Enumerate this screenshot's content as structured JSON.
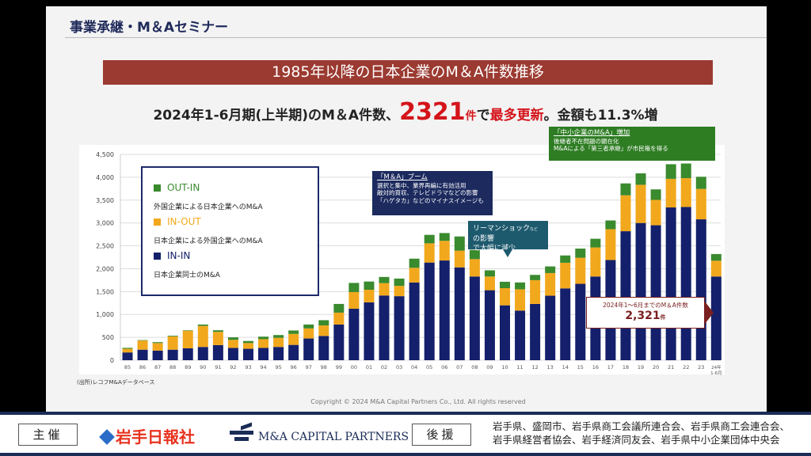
{
  "header": {
    "title": "事業承継・M＆Aセミナー"
  },
  "slide": {
    "title": "1985年以降の日本企業のM＆A件数推移",
    "subtitle_pre": "2024年1-6月期(上半期)のM＆A件数、",
    "subtitle_num": "2321",
    "subtitle_unit": "件",
    "subtitle_mid": "で",
    "subtitle_red": "最多更新",
    "subtitle_post": "。金額も11.3%増",
    "source": "(出所)レコフM&Aデータベース",
    "copyright": "Copyright © 2024 M&A Capital Partners Co., Ltd. All rights reserved"
  },
  "legend": [
    {
      "label": "OUT-IN",
      "desc": "外国企業による日本企業へのM&A",
      "color": "#3a8a2e"
    },
    {
      "label": "IN-OUT",
      "desc": "日本企業による外国企業へのM&A",
      "color": "#f2a81d"
    },
    {
      "label": "IN-IN",
      "desc": "日本企業同士のM&A",
      "color": "#14206b"
    }
  ],
  "annotations": {
    "boom": {
      "title": "「M＆A」ブーム",
      "lines": [
        "選択と集中、業界再編に有効活用",
        "敵対的買収、テレビドラマなどの影響",
        "「ハゲタカ」などのマイナスイメージも"
      ]
    },
    "lehman": {
      "line1": "リーマンショック",
      "small": "など",
      "line1b": "の影響",
      "line2": "で大幅に減少"
    },
    "sme": {
      "title": "「中小企業のM&A」増加",
      "lines": [
        "後継者不在問題の顕在化",
        "M&Aによる「第三者承継」が市民権を得る"
      ]
    },
    "callout": {
      "label": "2024年1～6月までのM＆A件数",
      "value": "2,321",
      "unit": "件"
    }
  },
  "chart_data": {
    "type": "bar",
    "stacked": true,
    "categories": [
      "85",
      "86",
      "87",
      "88",
      "89",
      "90",
      "91",
      "92",
      "93",
      "94",
      "95",
      "96",
      "97",
      "98",
      "99",
      "00",
      "01",
      "02",
      "03",
      "04",
      "05",
      "06",
      "07",
      "08",
      "09",
      "10",
      "11",
      "12",
      "13",
      "14",
      "15",
      "16",
      "17",
      "18",
      "19",
      "20",
      "21",
      "22",
      "23",
      "24年 1-6月"
    ],
    "series": [
      {
        "name": "IN-IN",
        "color": "#14206b",
        "values": [
          170,
          230,
          210,
          230,
          260,
          290,
          330,
          270,
          250,
          270,
          290,
          335,
          475,
          530,
          780,
          1125,
          1265,
          1415,
          1400,
          1700,
          2135,
          2180,
          2030,
          1830,
          1530,
          1200,
          1085,
          1230,
          1410,
          1570,
          1670,
          1830,
          2190,
          2820,
          3000,
          2950,
          3340,
          3350,
          3080,
          1830
        ]
      },
      {
        "name": "IN-OUT",
        "color": "#f2a81d",
        "values": [
          80,
          200,
          165,
          290,
          385,
          460,
          290,
          175,
          125,
          190,
          200,
          240,
          220,
          230,
          260,
          365,
          275,
          270,
          225,
          320,
          420,
          430,
          365,
          380,
          300,
          375,
          465,
          520,
          495,
          560,
          570,
          635,
          675,
          785,
          835,
          555,
          625,
          630,
          665,
          345
        ]
      },
      {
        "name": "OUT-IN",
        "color": "#3a8a2e",
        "values": [
          20,
          10,
          20,
          15,
          10,
          30,
          35,
          55,
          45,
          55,
          60,
          75,
          85,
          115,
          190,
          200,
          180,
          135,
          160,
          200,
          185,
          170,
          310,
          200,
          135,
          140,
          150,
          115,
          145,
          160,
          200,
          190,
          190,
          260,
          250,
          230,
          320,
          320,
          265,
          146
        ]
      }
    ],
    "ylim": [
      0,
      4500
    ],
    "yticks": [
      "0",
      "500",
      "1,000",
      "1,500",
      "2,000",
      "2,500",
      "3,000",
      "3,500",
      "4,000",
      "4,500"
    ],
    "grid": true,
    "legend_position": "top-left"
  },
  "footer": {
    "host_label": "主催",
    "host1": "岩手日報社",
    "host2": "M&A CAPITAL PARTNERS",
    "support_label": "後援",
    "supporters": [
      "岩手県、盛岡市、岩手県商工会議所連合会、岩手県商工会連合会、",
      "岩手県経営者協会、岩手経済同友会、岩手県中小企業団体中央会"
    ]
  }
}
